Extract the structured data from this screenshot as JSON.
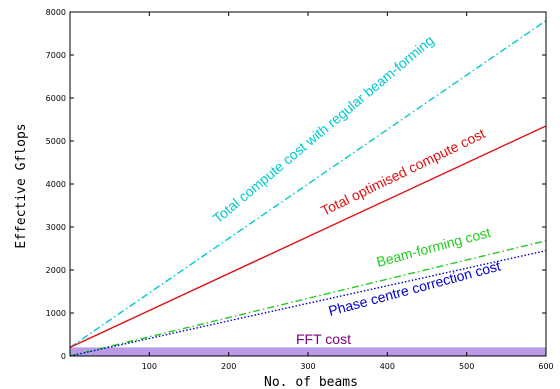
{
  "chart_data": {
    "type": "line",
    "title": "",
    "xlabel": "No. of beams",
    "ylabel": "Effective Gflops",
    "xlim": [
      0,
      600
    ],
    "ylim": [
      0,
      8000
    ],
    "x_ticks": [
      100,
      200,
      300,
      400,
      500,
      600
    ],
    "y_ticks": [
      0,
      1000,
      2000,
      3000,
      4000,
      5000,
      6000,
      7000,
      8000
    ],
    "grid": false,
    "legend": "none (series labelled by inline annotations)",
    "series": [
      {
        "name": "Total compute cost with regular beam-forming",
        "color": "#00c8d2",
        "dash": "dash-dot",
        "x": [
          0,
          600
        ],
        "y": [
          200,
          7800
        ]
      },
      {
        "name": "Total optimised compute cost",
        "color": "#dd1111",
        "dash": "solid",
        "x": [
          0,
          600
        ],
        "y": [
          200,
          5350
        ]
      },
      {
        "name": "Beam-forming cost",
        "color": "#22cc22",
        "dash": "dash-dot",
        "x": [
          0,
          600
        ],
        "y": [
          0,
          2680
        ]
      },
      {
        "name": "Phase centre correction cost",
        "color": "#0000cc",
        "dash": "dotted",
        "x": [
          0,
          600
        ],
        "y": [
          0,
          2450
        ]
      },
      {
        "name": "FFT cost",
        "color": "#b89ae6",
        "dash": "band",
        "x": [
          0,
          600
        ],
        "y": [
          200,
          200
        ]
      }
    ],
    "annotations": [
      {
        "text": "Total compute cost with regular beam-forming",
        "color": "#00c8d2"
      },
      {
        "text": "Total optimised compute cost",
        "color": "#dd1111"
      },
      {
        "text": "Beam-forming cost",
        "color": "#22cc22"
      },
      {
        "text": "Phase centre correction cost",
        "color": "#0000cc"
      },
      {
        "text": "FFT cost",
        "color": "#800080"
      }
    ]
  }
}
